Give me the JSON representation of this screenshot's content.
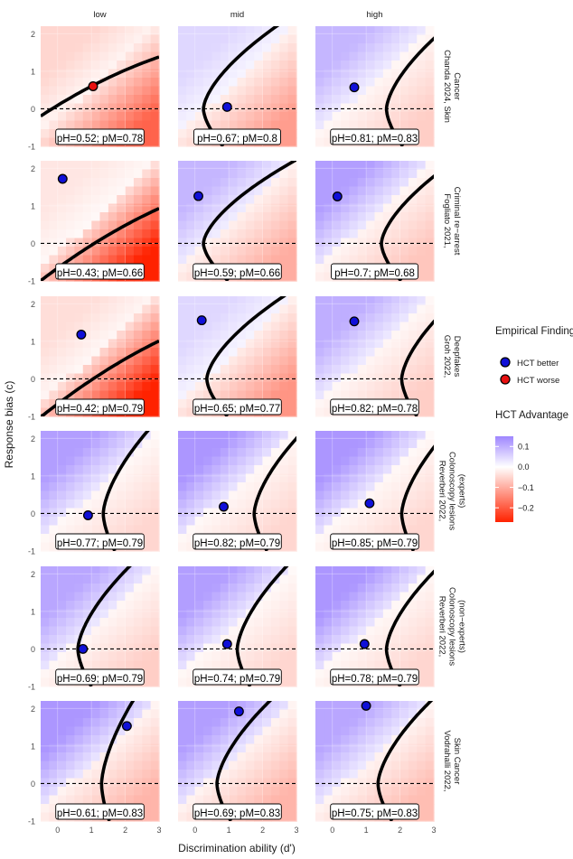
{
  "chart_data": {
    "type": "heatmap",
    "title": "",
    "xlabel": "Discrimination ability (d')",
    "ylabel": "Response bias (c)",
    "xlim": [
      -0.5,
      3
    ],
    "ylim": [
      -1,
      2.2
    ],
    "xticks": [
      0,
      1,
      2,
      3
    ],
    "yticks": [
      -1,
      0,
      1,
      2
    ],
    "grid": true,
    "columns": [
      "low",
      "mid",
      "high"
    ],
    "rows": [
      "Chanda 2024, Skin Cancer",
      "Fogliato 2021, Criminal re−arrest",
      "Groh 2022, Deepfakes",
      "Reverberi 2022, Colonoscopy lesions (experts)",
      "Reverberi 2022, Colonoscopy lesions (non−experts)",
      "Vodrahalli 2022, Skin Cancer"
    ],
    "reference_line": {
      "c": 0,
      "style": "dashed"
    },
    "panels": [
      {
        "row": 0,
        "col": 0,
        "label": "pH=0.52; pM=0.78",
        "point": {
          "d": 1.05,
          "c": 0.6,
          "finding": "HCT worse"
        }
      },
      {
        "row": 0,
        "col": 1,
        "label": "pH=0.67; pM=0.8",
        "point": {
          "d": 0.95,
          "c": 0.05,
          "finding": "HCT better"
        }
      },
      {
        "row": 0,
        "col": 2,
        "label": "pH=0.81; pM=0.83",
        "point": {
          "d": 0.65,
          "c": 0.57,
          "finding": "HCT better"
        }
      },
      {
        "row": 1,
        "col": 0,
        "label": "pH=0.43; pM=0.66",
        "point": {
          "d": 0.15,
          "c": 1.72,
          "finding": "HCT better"
        }
      },
      {
        "row": 1,
        "col": 1,
        "label": "pH=0.59; pM=0.66",
        "point": {
          "d": 0.1,
          "c": 1.26,
          "finding": "HCT better"
        }
      },
      {
        "row": 1,
        "col": 2,
        "label": "pH=0.7; pM=0.68",
        "point": {
          "d": 0.15,
          "c": 1.25,
          "finding": "HCT better"
        }
      },
      {
        "row": 2,
        "col": 0,
        "label": "pH=0.42; pM=0.79",
        "point": {
          "d": 0.7,
          "c": 1.18,
          "finding": "HCT better"
        }
      },
      {
        "row": 2,
        "col": 1,
        "label": "pH=0.65; pM=0.77",
        "point": {
          "d": 0.2,
          "c": 1.56,
          "finding": "HCT better"
        }
      },
      {
        "row": 2,
        "col": 2,
        "label": "pH=0.82; pM=0.78",
        "point": {
          "d": 0.65,
          "c": 1.53,
          "finding": "HCT better"
        }
      },
      {
        "row": 3,
        "col": 0,
        "label": "pH=0.77; pM=0.79",
        "point": {
          "d": 0.9,
          "c": -0.05,
          "finding": "HCT better"
        }
      },
      {
        "row": 3,
        "col": 1,
        "label": "pH=0.82; pM=0.79",
        "point": {
          "d": 0.85,
          "c": 0.18,
          "finding": "HCT better"
        }
      },
      {
        "row": 3,
        "col": 2,
        "label": "pH=0.85; pM=0.79",
        "point": {
          "d": 1.1,
          "c": 0.27,
          "finding": "HCT better"
        }
      },
      {
        "row": 4,
        "col": 0,
        "label": "pH=0.69; pM=0.79",
        "point": {
          "d": 0.75,
          "c": 0.0,
          "finding": "HCT better"
        }
      },
      {
        "row": 4,
        "col": 1,
        "label": "pH=0.74; pM=0.79",
        "point": {
          "d": 0.95,
          "c": 0.13,
          "finding": "HCT better"
        }
      },
      {
        "row": 4,
        "col": 2,
        "label": "pH=0.78; pM=0.79",
        "point": {
          "d": 0.95,
          "c": 0.13,
          "finding": "HCT better"
        }
      },
      {
        "row": 5,
        "col": 0,
        "label": "pH=0.61; pM=0.83",
        "point": {
          "d": 2.05,
          "c": 1.53,
          "finding": "HCT better"
        }
      },
      {
        "row": 5,
        "col": 1,
        "label": "pH=0.69; pM=0.83",
        "point": {
          "d": 1.3,
          "c": 1.92,
          "finding": "HCT better"
        }
      },
      {
        "row": 5,
        "col": 2,
        "label": "pH=0.75; pM=0.83",
        "point": {
          "d": 1.0,
          "c": 2.07,
          "finding": "HCT better"
        }
      }
    ],
    "legend_findings": {
      "title": "Empirical Findings",
      "entries": [
        {
          "label": "HCT better",
          "color": "#1010d8"
        },
        {
          "label": "HCT worse",
          "color": "#e81010"
        }
      ]
    },
    "legend_advantage": {
      "title": "HCT Advantage",
      "ticks": [
        0.1,
        0.0,
        -0.1,
        -0.2
      ],
      "tick_labels": [
        "0.1",
        "0.0",
        "−0.1",
        "−0.2"
      ],
      "range": [
        -0.27,
        0.15
      ],
      "colors": {
        "low": "#ff2200",
        "mid": "#ffffff",
        "high": "#9f86ff"
      }
    },
    "legend_placement": "right"
  }
}
